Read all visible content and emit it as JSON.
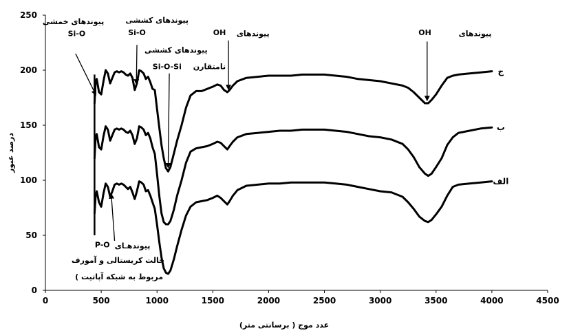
{
  "chart_data": {
    "type": "line",
    "xlabel": "عدد موج ( برسانتی متر)",
    "ylabel": "درصد عبور",
    "xlim": [
      0,
      4500
    ],
    "ylim": [
      0,
      250
    ],
    "x_ticks": [
      "0",
      "500",
      "1000",
      "1500",
      "2000",
      "2500",
      "3000",
      "3500",
      "4000",
      "4500"
    ],
    "y_ticks": [
      "0",
      "50",
      "100",
      "150",
      "200",
      "250"
    ],
    "grid": false,
    "series": [
      {
        "name": "ج",
        "x": [
          440,
          450,
          460,
          480,
          500,
          520,
          540,
          560,
          580,
          600,
          620,
          640,
          660,
          680,
          700,
          720,
          740,
          760,
          780,
          800,
          820,
          840,
          860,
          880,
          900,
          920,
          940,
          960,
          980,
          1000,
          1020,
          1040,
          1060,
          1080,
          1100,
          1120,
          1150,
          1180,
          1220,
          1260,
          1300,
          1350,
          1400,
          1450,
          1500,
          1540,
          1570,
          1600,
          1630,
          1650,
          1680,
          1720,
          1800,
          1900,
          2000,
          2100,
          2200,
          2300,
          2400,
          2500,
          2600,
          2700,
          2800,
          2900,
          3000,
          3100,
          3200,
          3250,
          3300,
          3350,
          3400,
          3430,
          3460,
          3500,
          3550,
          3600,
          3650,
          3700,
          3800,
          3900,
          4000
        ],
        "y": [
          170,
          190,
          192,
          180,
          178,
          190,
          200,
          197,
          188,
          193,
          198,
          199,
          198,
          199,
          198,
          196,
          195,
          197,
          193,
          182,
          188,
          200,
          199,
          197,
          192,
          194,
          189,
          183,
          182,
          165,
          148,
          132,
          120,
          111,
          108,
          112,
          124,
          136,
          150,
          166,
          177,
          181,
          181,
          183,
          185,
          187,
          186,
          182,
          180,
          182,
          186,
          190,
          193,
          194,
          195,
          195,
          195,
          196,
          196,
          196,
          195,
          194,
          192,
          191,
          190,
          188,
          186,
          184,
          180,
          175,
          170,
          170,
          173,
          178,
          186,
          193,
          195,
          196,
          197,
          198,
          199
        ]
      },
      {
        "name": "ب",
        "x": [
          440,
          450,
          460,
          480,
          500,
          520,
          540,
          560,
          580,
          600,
          620,
          640,
          660,
          680,
          700,
          720,
          740,
          760,
          780,
          800,
          820,
          840,
          860,
          880,
          900,
          920,
          940,
          960,
          980,
          1000,
          1020,
          1040,
          1060,
          1080,
          1100,
          1120,
          1150,
          1180,
          1220,
          1260,
          1300,
          1350,
          1400,
          1450,
          1500,
          1540,
          1570,
          1600,
          1630,
          1650,
          1680,
          1720,
          1800,
          1900,
          2000,
          2100,
          2200,
          2300,
          2400,
          2500,
          2600,
          2700,
          2800,
          2900,
          3000,
          3100,
          3200,
          3250,
          3300,
          3350,
          3400,
          3430,
          3460,
          3500,
          3550,
          3600,
          3650,
          3700,
          3800,
          3900,
          4000
        ],
        "y": [
          120,
          140,
          142,
          130,
          128,
          140,
          149,
          146,
          136,
          141,
          146,
          147,
          146,
          147,
          146,
          144,
          143,
          145,
          141,
          133,
          138,
          149,
          148,
          146,
          141,
          143,
          138,
          130,
          124,
          106,
          86,
          70,
          62,
          60,
          60,
          63,
          73,
          86,
          100,
          116,
          126,
          129,
          130,
          131,
          133,
          135,
          134,
          131,
          128,
          131,
          135,
          139,
          142,
          143,
          144,
          145,
          145,
          146,
          146,
          146,
          145,
          144,
          142,
          140,
          139,
          137,
          133,
          128,
          121,
          112,
          106,
          104,
          106,
          112,
          120,
          132,
          139,
          143,
          145,
          147,
          148
        ]
      },
      {
        "name": "الف",
        "x": [
          440,
          450,
          460,
          480,
          500,
          520,
          540,
          560,
          580,
          600,
          620,
          640,
          660,
          680,
          700,
          720,
          740,
          760,
          780,
          800,
          820,
          840,
          860,
          880,
          900,
          920,
          940,
          960,
          980,
          1000,
          1020,
          1040,
          1060,
          1080,
          1100,
          1120,
          1150,
          1180,
          1220,
          1260,
          1300,
          1350,
          1400,
          1450,
          1500,
          1540,
          1570,
          1600,
          1630,
          1650,
          1680,
          1720,
          1800,
          1900,
          2000,
          2100,
          2200,
          2300,
          2400,
          2500,
          2600,
          2700,
          2800,
          2900,
          3000,
          3100,
          3200,
          3250,
          3300,
          3350,
          3400,
          3430,
          3460,
          3500,
          3550,
          3600,
          3650,
          3700,
          3800,
          3900,
          4000
        ],
        "y": [
          70,
          86,
          90,
          80,
          76,
          88,
          97,
          94,
          85,
          90,
          96,
          97,
          96,
          97,
          96,
          94,
          92,
          94,
          89,
          83,
          90,
          99,
          98,
          96,
          90,
          91,
          86,
          80,
          74,
          60,
          44,
          30,
          20,
          16,
          15,
          18,
          28,
          40,
          55,
          68,
          76,
          80,
          81,
          82,
          84,
          86,
          84,
          81,
          78,
          81,
          86,
          91,
          95,
          96,
          97,
          97,
          98,
          98,
          98,
          98,
          97,
          96,
          94,
          92,
          90,
          89,
          85,
          80,
          74,
          67,
          63,
          62,
          64,
          69,
          76,
          86,
          94,
          96,
          97,
          98,
          99
        ]
      }
    ],
    "series_labels": [
      {
        "text": "ج",
        "x": 4080,
        "y": 199
      },
      {
        "text": "ب",
        "x": 4080,
        "y": 148
      },
      {
        "text": "الف",
        "x": 4080,
        "y": 99
      }
    ],
    "annotations": [
      {
        "text": "پیوندهای خمشی",
        "x": 250,
        "y": 242
      },
      {
        "text": "پیوندهای کششی",
        "x": 1000,
        "y": 243
      },
      {
        "text": "Si-O",
        "x": 280,
        "y": 231
      },
      {
        "text": "Si-O",
        "x": 820,
        "y": 232
      },
      {
        "text": "پیوندهای کششی",
        "x": 1170,
        "y": 216
      },
      {
        "text": "نامتقارن",
        "x": 1470,
        "y": 201
      },
      {
        "text": "Si-O-Si",
        "x": 1090,
        "y": 201
      },
      {
        "text": "پیوندهای",
        "x": 1860,
        "y": 231
      },
      {
        "text": "OH",
        "x": 1560,
        "y": 232
      },
      {
        "text": "پیوندهای",
        "x": 3850,
        "y": 231
      },
      {
        "text": "OH",
        "x": 3400,
        "y": 232
      },
      {
        "text": "پیوندهـای",
        "x": 780,
        "y": 38
      },
      {
        "text": "P-O",
        "x": 510,
        "y": 39
      },
      {
        "text": "حالت کریستالی و آمورف",
        "x": 650,
        "y": 25
      },
      {
        "text": "( مربوط به شبکه آپاتیت",
        "x": 660,
        "y": 10
      }
    ],
    "arrows": [
      {
        "from": [
          270,
          215
        ],
        "to": [
          450,
          178
        ]
      },
      {
        "from": [
          820,
          223
        ],
        "to": [
          815,
          188
        ]
      },
      {
        "from": [
          1110,
          197
        ],
        "to": [
          1100,
          112
        ]
      },
      {
        "from": [
          1640,
          227
        ],
        "to": [
          1640,
          183
        ]
      },
      {
        "from": [
          3420,
          226
        ],
        "to": [
          3420,
          173
        ]
      },
      {
        "from": [
          620,
          45
        ],
        "to": [
          590,
          87
        ]
      }
    ],
    "marker_line": {
      "x": 440,
      "y_from": 50,
      "y_to": 196
    }
  }
}
